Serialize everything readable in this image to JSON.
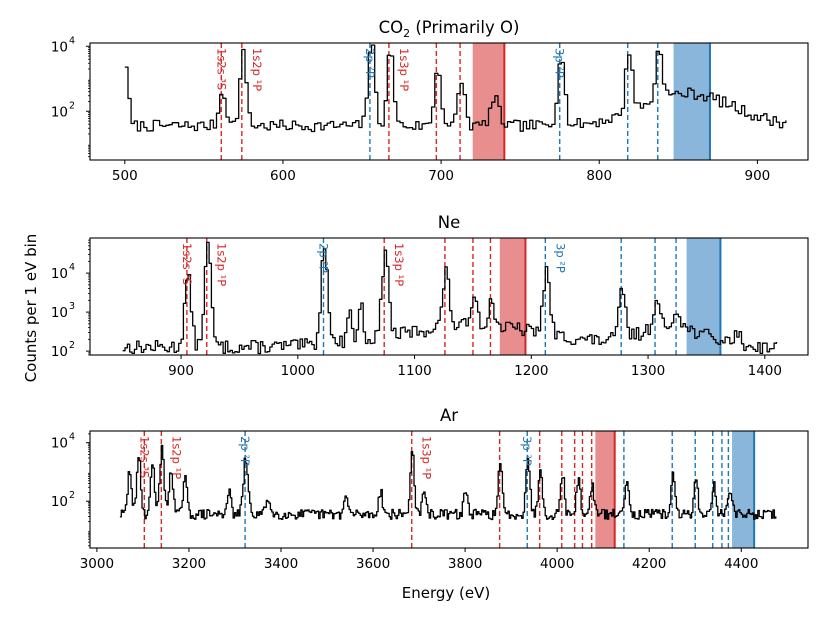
{
  "figure": {
    "shared_ylabel": "Counts per 1 eV bin",
    "shared_xlabel": "Energy (eV)"
  },
  "colors": {
    "red": "#d62728",
    "blue": "#1f77b4",
    "red_fill": "#e88e8e",
    "blue_fill": "#8ab6db",
    "trace": "#000000"
  },
  "chart_data": [
    {
      "type": "line",
      "id": "co2",
      "title_main": "CO",
      "title_sub": "2",
      "title_rest": " (Primarily O)",
      "xlim": [
        478,
        932
      ],
      "ylim_log10": [
        0.5,
        4.1
      ],
      "xticks": [
        500,
        600,
        700,
        800,
        900
      ],
      "yticks": [
        {
          "exp": 2,
          "label": "10",
          "sup": "2"
        },
        {
          "exp": 4,
          "label": "10",
          "sup": "4"
        }
      ],
      "x_start": 500,
      "x_end": 918,
      "x_step": 2,
      "baseline_log10": 1.55,
      "noise_seed": 7,
      "broad_features": [
        {
          "x": 855,
          "amp": 1.0,
          "width": 40
        }
      ],
      "peaks": [
        {
          "x": 500,
          "amp": 1.9,
          "width": 2
        },
        {
          "x": 561,
          "amp": 1.1,
          "width": 3
        },
        {
          "x": 574,
          "amp": 2.2,
          "width": 3
        },
        {
          "x": 655,
          "amp": 2.6,
          "width": 3
        },
        {
          "x": 667,
          "amp": 2.3,
          "width": 3
        },
        {
          "x": 697,
          "amp": 1.8,
          "width": 3
        },
        {
          "x": 712,
          "amp": 1.4,
          "width": 3
        },
        {
          "x": 733,
          "amp": 0.8,
          "width": 4
        },
        {
          "x": 775,
          "amp": 2.3,
          "width": 3
        },
        {
          "x": 818,
          "amp": 1.9,
          "width": 3
        },
        {
          "x": 837,
          "amp": 1.6,
          "width": 3
        }
      ],
      "red_lines": [
        561,
        574,
        667,
        697,
        712
      ],
      "blue_lines": [
        655,
        775,
        818,
        837
      ],
      "red_band": [
        720,
        740
      ],
      "blue_band": [
        847,
        870
      ],
      "labels": [
        {
          "text": "1s2s ³S",
          "x": 561,
          "side": "left",
          "color": "red"
        },
        {
          "text": "1s2p ¹P",
          "x": 574,
          "side": "right",
          "color": "red"
        },
        {
          "text": "2p ²P",
          "x": 655,
          "side": "left",
          "color": "blue"
        },
        {
          "text": "1s3p ¹P",
          "x": 667,
          "side": "right",
          "color": "red"
        },
        {
          "text": "3p ²P",
          "x": 775,
          "side": "left",
          "color": "blue"
        }
      ]
    },
    {
      "type": "line",
      "id": "ne",
      "title_main": "Ne",
      "title_sub": "",
      "title_rest": "",
      "xlim": [
        822,
        1437
      ],
      "ylim_log10": [
        1.9,
        4.9
      ],
      "xticks": [
        900,
        1000,
        1100,
        1200,
        1300,
        1400
      ],
      "yticks": [
        {
          "exp": 2,
          "label": "10",
          "sup": "2"
        },
        {
          "exp": 3,
          "label": "10",
          "sup": "3"
        },
        {
          "exp": 4,
          "label": "10",
          "sup": "4"
        }
      ],
      "x_start": 850,
      "x_end": 1410,
      "x_step": 2,
      "baseline_log10": 2.1,
      "noise_seed": 13,
      "broad_features": [
        {
          "x": 1150,
          "amp": 0.55,
          "width": 90
        },
        {
          "x": 1320,
          "amp": 0.5,
          "width": 40
        }
      ],
      "peaks": [
        {
          "x": 905,
          "amp": 1.8,
          "width": 4
        },
        {
          "x": 922,
          "amp": 2.6,
          "width": 4
        },
        {
          "x": 1022,
          "amp": 2.6,
          "width": 4
        },
        {
          "x": 1043,
          "amp": 0.8,
          "width": 3
        },
        {
          "x": 1053,
          "amp": 0.9,
          "width": 3
        },
        {
          "x": 1074,
          "amp": 2.2,
          "width": 4
        },
        {
          "x": 1126,
          "amp": 1.4,
          "width": 4
        },
        {
          "x": 1150,
          "amp": 0.8,
          "width": 4
        },
        {
          "x": 1165,
          "amp": 0.6,
          "width": 4
        },
        {
          "x": 1212,
          "amp": 1.6,
          "width": 4
        },
        {
          "x": 1277,
          "amp": 1.2,
          "width": 4
        },
        {
          "x": 1306,
          "amp": 0.7,
          "width": 4
        },
        {
          "x": 1324,
          "amp": 0.5,
          "width": 4
        },
        {
          "x": 1375,
          "amp": 0.3,
          "width": 4
        }
      ],
      "red_lines": [
        905,
        922,
        1074,
        1126,
        1150,
        1165
      ],
      "blue_lines": [
        1022,
        1212,
        1277,
        1306,
        1324
      ],
      "red_band": [
        1173,
        1195
      ],
      "blue_band": [
        1333,
        1362
      ],
      "labels": [
        {
          "text": "1s2s ³S",
          "x": 905,
          "side": "left",
          "color": "red"
        },
        {
          "text": "1s2p ¹P",
          "x": 922,
          "side": "right",
          "color": "red"
        },
        {
          "text": "2p ²P",
          "x": 1022,
          "side": "left",
          "color": "blue"
        },
        {
          "text": "1s3p ¹P",
          "x": 1074,
          "side": "right",
          "color": "red"
        },
        {
          "text": "3p ²P",
          "x": 1212,
          "side": "right",
          "color": "blue"
        }
      ]
    },
    {
      "type": "line",
      "id": "ar",
      "title_main": "Ar",
      "title_sub": "",
      "title_rest": "",
      "xlim": [
        2985,
        4545
      ],
      "ylim_log10": [
        0.4,
        4.4
      ],
      "xticks": [
        3000,
        3200,
        3400,
        3600,
        3800,
        4000,
        4200,
        4400
      ],
      "yticks": [
        {
          "exp": 2,
          "label": "10",
          "sup": "2"
        },
        {
          "exp": 4,
          "label": "10",
          "sup": "4"
        }
      ],
      "x_start": 3050,
      "x_end": 4475,
      "x_step": 3,
      "baseline_log10": 1.55,
      "noise_seed": 29,
      "broad_features": [],
      "peaks": [
        {
          "x": 3070,
          "amp": 1.5,
          "width": 6
        },
        {
          "x": 3090,
          "amp": 2.0,
          "width": 6
        },
        {
          "x": 3120,
          "amp": 1.8,
          "width": 6
        },
        {
          "x": 3140,
          "amp": 2.4,
          "width": 6
        },
        {
          "x": 3160,
          "amp": 1.6,
          "width": 6
        },
        {
          "x": 3190,
          "amp": 1.2,
          "width": 6
        },
        {
          "x": 3285,
          "amp": 0.8,
          "width": 6
        },
        {
          "x": 3322,
          "amp": 1.9,
          "width": 7
        },
        {
          "x": 3370,
          "amp": 0.6,
          "width": 6
        },
        {
          "x": 3540,
          "amp": 0.6,
          "width": 6
        },
        {
          "x": 3615,
          "amp": 0.8,
          "width": 6
        },
        {
          "x": 3684,
          "amp": 2.2,
          "width": 6
        },
        {
          "x": 3710,
          "amp": 0.7,
          "width": 6
        },
        {
          "x": 3800,
          "amp": 0.8,
          "width": 6
        },
        {
          "x": 3875,
          "amp": 1.7,
          "width": 6
        },
        {
          "x": 3935,
          "amp": 2.0,
          "width": 6
        },
        {
          "x": 3962,
          "amp": 1.6,
          "width": 6
        },
        {
          "x": 4010,
          "amp": 1.4,
          "width": 6
        },
        {
          "x": 4045,
          "amp": 1.2,
          "width": 6
        },
        {
          "x": 4075,
          "amp": 1.0,
          "width": 6
        },
        {
          "x": 4150,
          "amp": 1.3,
          "width": 6
        },
        {
          "x": 4250,
          "amp": 1.3,
          "width": 6
        },
        {
          "x": 4300,
          "amp": 1.2,
          "width": 6
        },
        {
          "x": 4340,
          "amp": 1.0,
          "width": 6
        },
        {
          "x": 4375,
          "amp": 0.9,
          "width": 6
        }
      ],
      "red_lines": [
        3103,
        3140,
        3684,
        3875,
        3962,
        4010,
        4038,
        4055,
        4075
      ],
      "blue_lines": [
        3322,
        3935,
        4145,
        4250,
        4300,
        4338,
        4358,
        4372
      ],
      "red_band": [
        4083,
        4125
      ],
      "blue_band": [
        4380,
        4428
      ],
      "labels": [
        {
          "text": "1s2s ³S",
          "x": 3103,
          "side": "left",
          "color": "red"
        },
        {
          "text": "1s2p ¹P",
          "x": 3140,
          "side": "right",
          "color": "red"
        },
        {
          "text": "2p ²P",
          "x": 3322,
          "side": "left",
          "color": "blue"
        },
        {
          "text": "1s3p ¹P",
          "x": 3684,
          "side": "right",
          "color": "red"
        },
        {
          "text": "3p ²P",
          "x": 3935,
          "side": "left",
          "color": "blue"
        }
      ]
    }
  ]
}
